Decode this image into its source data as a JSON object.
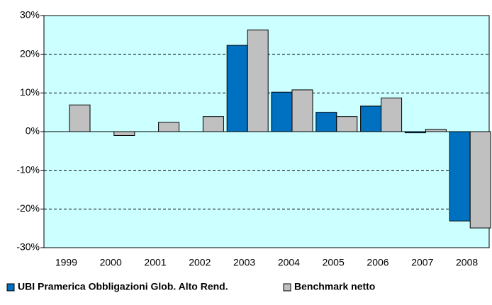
{
  "chart_data": {
    "type": "bar",
    "categories": [
      "1999",
      "2000",
      "2001",
      "2002",
      "2003",
      "2004",
      "2005",
      "2006",
      "2007",
      "2008"
    ],
    "series": [
      {
        "name": "UBI Pramerica Obbligazioni Glob. Alto Rend.",
        "color": "#0070c0",
        "values": [
          null,
          null,
          null,
          null,
          22.3,
          10.2,
          5.0,
          6.6,
          -0.3,
          -23.1
        ]
      },
      {
        "name": "Benchmark netto",
        "color": "#c0c0c0",
        "values": [
          6.9,
          -1.0,
          2.4,
          3.9,
          26.3,
          10.8,
          3.9,
          8.7,
          0.6,
          -24.9
        ]
      }
    ],
    "ylim": [
      -30,
      30
    ],
    "yticks": [
      {
        "value": -30,
        "label": "-30%"
      },
      {
        "value": -20,
        "label": "-20%"
      },
      {
        "value": -10,
        "label": "-10%"
      },
      {
        "value": 0,
        "label": "0%"
      },
      {
        "value": 10,
        "label": "10%"
      },
      {
        "value": 20,
        "label": "20%"
      },
      {
        "value": 30,
        "label": "30%"
      }
    ],
    "grid": true,
    "background": "#ccffff",
    "legend": "bottom"
  }
}
